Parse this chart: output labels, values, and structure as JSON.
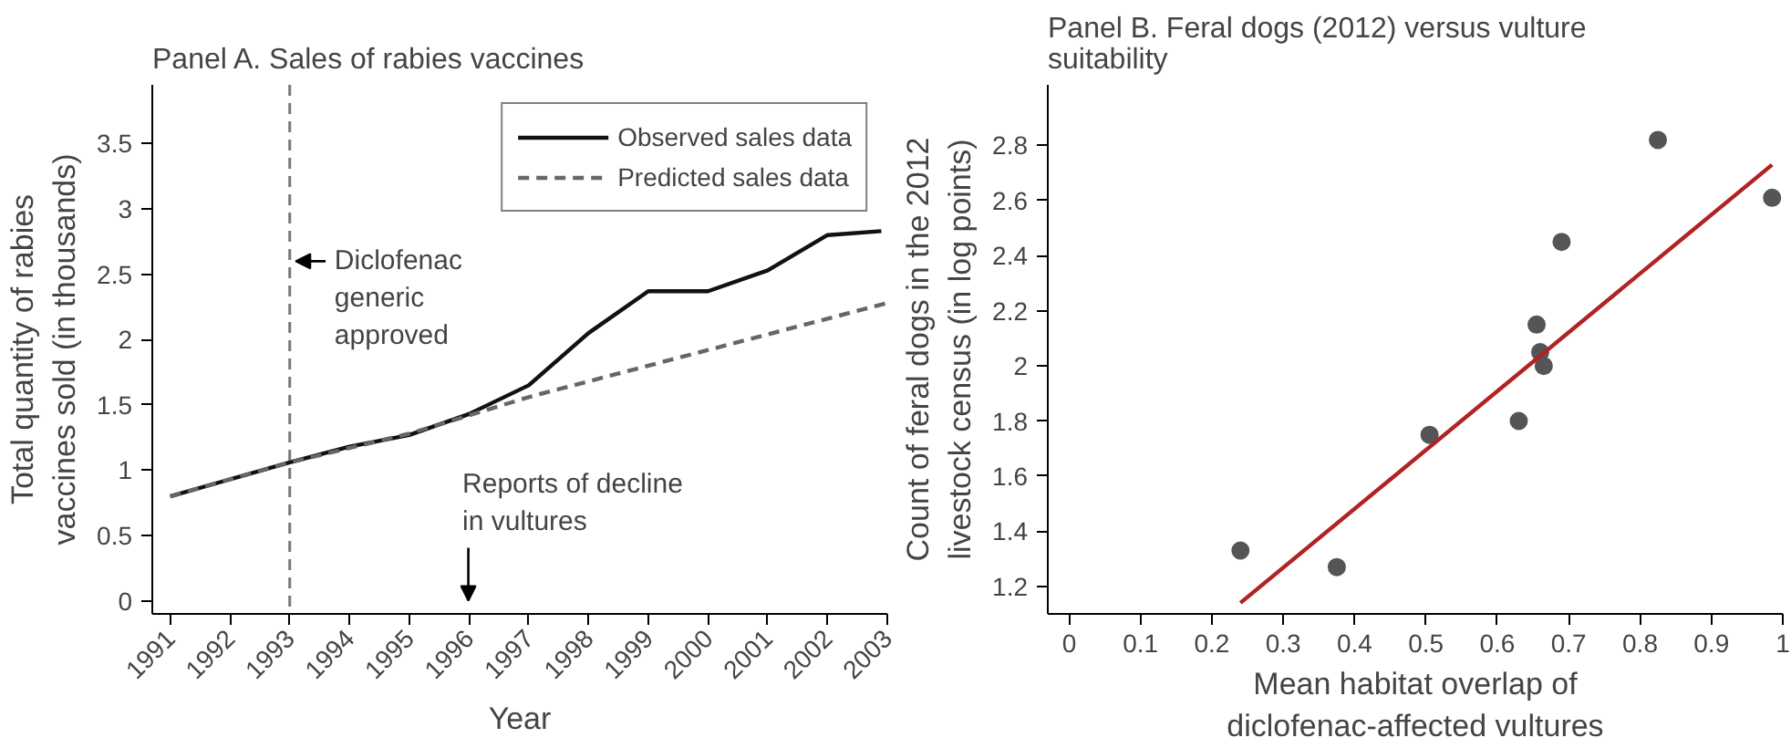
{
  "chart_data": [
    {
      "type": "line",
      "title": "Panel A. Sales of rabies vaccines",
      "xlabel": "Year",
      "ylabel": "Total quantity of rabies vaccines sold (in thousands)",
      "series": [
        {
          "name": "Observed sales data",
          "color": "#111111",
          "line_style": "solid",
          "marker": "none",
          "x": [
            1991,
            1992,
            1993,
            1994,
            1995,
            1996,
            1997,
            1998,
            1999,
            2000,
            2001,
            2002,
            2002.9
          ],
          "values": [
            0.8,
            0.93,
            1.06,
            1.18,
            1.27,
            1.43,
            1.65,
            2.05,
            2.37,
            2.37,
            2.53,
            2.8,
            2.83
          ]
        },
        {
          "name": "Predicted sales data",
          "color": "#666666",
          "line_style": "dashed",
          "marker": "none",
          "x": [
            1991,
            1992,
            1993,
            1994,
            1995,
            1996,
            1997,
            1998,
            1999,
            2000,
            2001,
            2002,
            2003
          ],
          "values": [
            0.8,
            0.93,
            1.06,
            1.17,
            1.28,
            1.42,
            1.56,
            1.68,
            1.8,
            1.92,
            2.04,
            2.16,
            2.28
          ]
        }
      ],
      "xlim": [
        1990.7,
        2003
      ],
      "xticks": [
        1991,
        1992,
        1993,
        1994,
        1995,
        1996,
        1997,
        1998,
        1999,
        2000,
        2001,
        2002,
        2003
      ],
      "ylim": [
        -0.1,
        3.95
      ],
      "yticks": [
        0,
        0.5,
        1,
        1.5,
        2,
        2.5,
        3,
        3.5
      ],
      "ref_lines": [
        {
          "axis": "x",
          "value": 1993,
          "color": "#777777",
          "line_style": "dashed"
        }
      ],
      "annotations": [
        {
          "text": "Diclofenac generic approved",
          "x": 1993,
          "y": 2.6
        },
        "Reports of decline in vultures"
      ],
      "legend": "top right",
      "grid": false
    },
    {
      "type": "scatter",
      "title": "Panel B. Feral dogs (2012) versus vulture suitability",
      "xlabel": "Mean habitat overlap of diclofenac-affected vultures",
      "ylabel": "Count of feral dogs in the 2012 livestock census (in log points)",
      "series": [
        {
          "color": "#555555",
          "marker": "circle",
          "x": [
            0.24,
            0.375,
            0.505,
            0.63,
            0.655,
            0.66,
            0.665,
            0.69,
            0.825,
            0.985
          ],
          "values": [
            1.33,
            1.27,
            1.75,
            1.8,
            2.15,
            2.05,
            2.0,
            2.45,
            2.82,
            2.61
          ]
        },
        {
          "type": "line",
          "color": "#b22222",
          "marker": "none",
          "line_style": "solid",
          "x": [
            0.24,
            0.985
          ],
          "values": [
            1.14,
            2.73
          ]
        }
      ],
      "xlim": [
        -0.03,
        1.0
      ],
      "xticks": [
        0,
        0.1,
        0.2,
        0.3,
        0.4,
        0.5,
        0.6,
        0.7,
        0.8,
        0.9,
        1
      ],
      "ylim": [
        1.1,
        3.02
      ],
      "yticks": [
        1.2,
        1.4,
        1.6,
        1.8,
        2,
        2.2,
        2.4,
        2.6,
        2.8
      ],
      "legend": false,
      "grid": false
    }
  ]
}
